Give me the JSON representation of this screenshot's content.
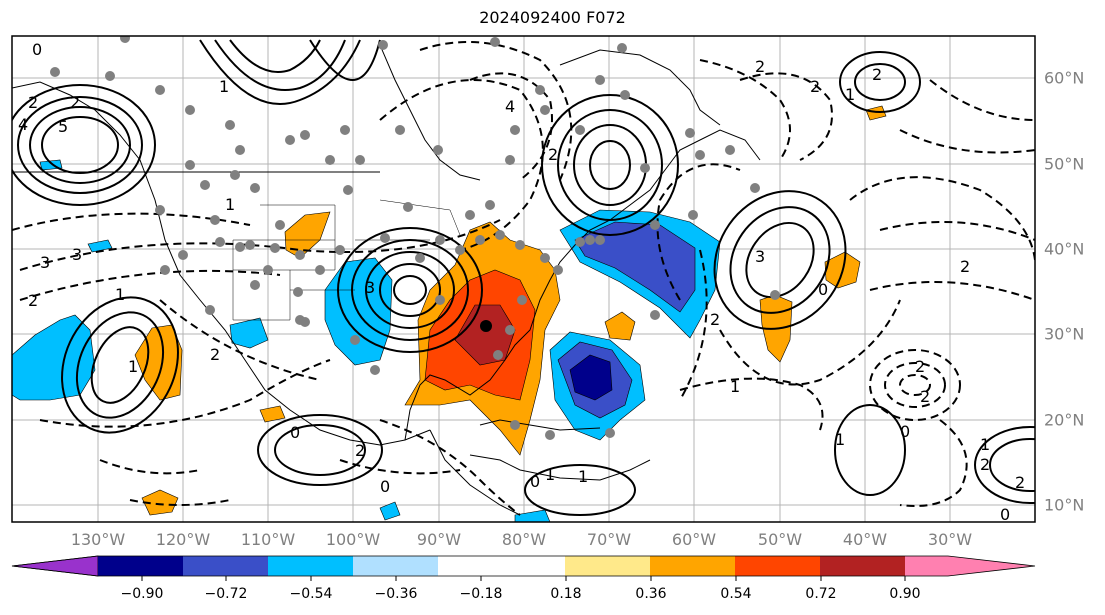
{
  "title": "2024092400 F072",
  "longitude_labels": [
    "130°W",
    "120°W",
    "110°W",
    "100°W",
    "90°W",
    "80°W",
    "70°W",
    "60°W",
    "50°W",
    "40°W",
    "30°W"
  ],
  "latitude_labels": [
    "60°N",
    "50°N",
    "40°N",
    "30°N",
    "20°N",
    "10°N"
  ],
  "colorbar": {
    "tick_labels": [
      "−0.90",
      "−0.72",
      "−0.54",
      "−0.36",
      "−0.18",
      "0.18",
      "0.36",
      "0.54",
      "0.72",
      "0.90"
    ],
    "colors": [
      "#9932cc",
      "#00008b",
      "#3a4fc8",
      "#00bfff",
      "#b0e0ff",
      "#ffffff",
      "#ffe98a",
      "#ffa500",
      "#ff4500",
      "#b22222",
      "#ff80b0"
    ]
  },
  "contour_labels": [
    "0",
    "2",
    "2",
    "4",
    "5",
    "1",
    "3",
    "1",
    "2",
    "1",
    "4",
    "2",
    "2",
    "2",
    "2",
    "1",
    "1",
    "2",
    "3",
    "2",
    "0",
    "1",
    "2",
    "2",
    "0",
    "1",
    "2",
    "2",
    "3",
    "3",
    "2",
    "0",
    "1",
    "1",
    "0",
    "1",
    "2",
    "0",
    "0"
  ]
}
